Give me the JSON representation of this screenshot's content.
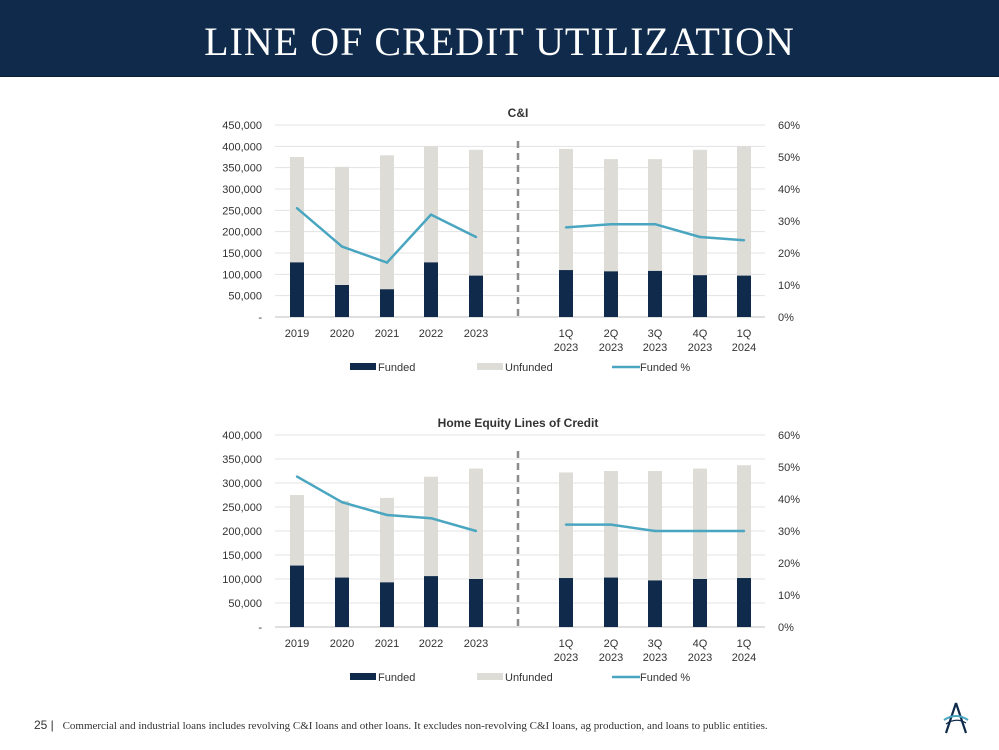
{
  "header": {
    "title": "LINE OF CREDIT UTILIZATION"
  },
  "colors": {
    "funded": "#0f2a4a",
    "unfunded": "#dedcd6",
    "line": "#4aa6c0",
    "header": "#0f2a4a"
  },
  "chart_data": [
    {
      "type": "bar",
      "title": "C&I",
      "categories": [
        "2019",
        "2020",
        "2021",
        "2022",
        "2023",
        "1Q 2023",
        "2Q 2023",
        "3Q 2023",
        "4Q 2023",
        "1Q 2024"
      ],
      "series": [
        {
          "name": "Funded",
          "type": "bar",
          "values": [
            128000,
            75000,
            65000,
            128000,
            97000,
            110000,
            107000,
            108000,
            98000,
            97000
          ]
        },
        {
          "name": "Unfunded",
          "type": "bar",
          "values": [
            247000,
            277000,
            314000,
            272000,
            295000,
            284000,
            263000,
            262000,
            294000,
            303000
          ]
        },
        {
          "name": "Funded %",
          "type": "line",
          "axis": "right",
          "values": [
            0.34,
            0.22,
            0.17,
            0.32,
            0.25,
            0.28,
            0.29,
            0.29,
            0.25,
            0.24
          ]
        }
      ],
      "left_ticks": [
        "-",
        "50,000",
        "100,000",
        "150,000",
        "200,000",
        "250,000",
        "300,000",
        "350,000",
        "400,000",
        "450,000"
      ],
      "right_ticks": [
        "0%",
        "10%",
        "20%",
        "30%",
        "40%",
        "50%",
        "60%"
      ],
      "ylim": [
        0,
        450000
      ],
      "y2lim": [
        0,
        0.6
      ],
      "legend": "bottom",
      "grid": true
    },
    {
      "type": "bar",
      "title": "Home Equity Lines of Credit",
      "categories": [
        "2019",
        "2020",
        "2021",
        "2022",
        "2023",
        "1Q 2023",
        "2Q 2023",
        "3Q 2023",
        "4Q 2023",
        "1Q 2024"
      ],
      "series": [
        {
          "name": "Funded",
          "type": "bar",
          "values": [
            128000,
            103000,
            93000,
            106000,
            100000,
            102000,
            103000,
            97000,
            100000,
            102000
          ]
        },
        {
          "name": "Unfunded",
          "type": "bar",
          "values": [
            147000,
            160000,
            176000,
            207000,
            230000,
            220000,
            222000,
            228000,
            230000,
            235000
          ]
        },
        {
          "name": "Funded %",
          "type": "line",
          "axis": "right",
          "values": [
            0.47,
            0.39,
            0.35,
            0.34,
            0.3,
            0.32,
            0.32,
            0.3,
            0.3,
            0.3
          ]
        }
      ],
      "left_ticks": [
        "-",
        "50,000",
        "100,000",
        "150,000",
        "200,000",
        "250,000",
        "300,000",
        "350,000",
        "400,000"
      ],
      "right_ticks": [
        "0%",
        "10%",
        "20%",
        "30%",
        "40%",
        "50%",
        "60%"
      ],
      "ylim": [
        0,
        400000
      ],
      "y2lim": [
        0,
        0.6
      ],
      "legend": "bottom",
      "grid": true
    }
  ],
  "footer": {
    "page": "25 |",
    "note": "Commercial and industrial loans includes revolving C&I loans and other loans. It excludes non-revolving C&I loans, ag production, and loans to public entities."
  },
  "logo": {
    "name": "company-logo"
  }
}
